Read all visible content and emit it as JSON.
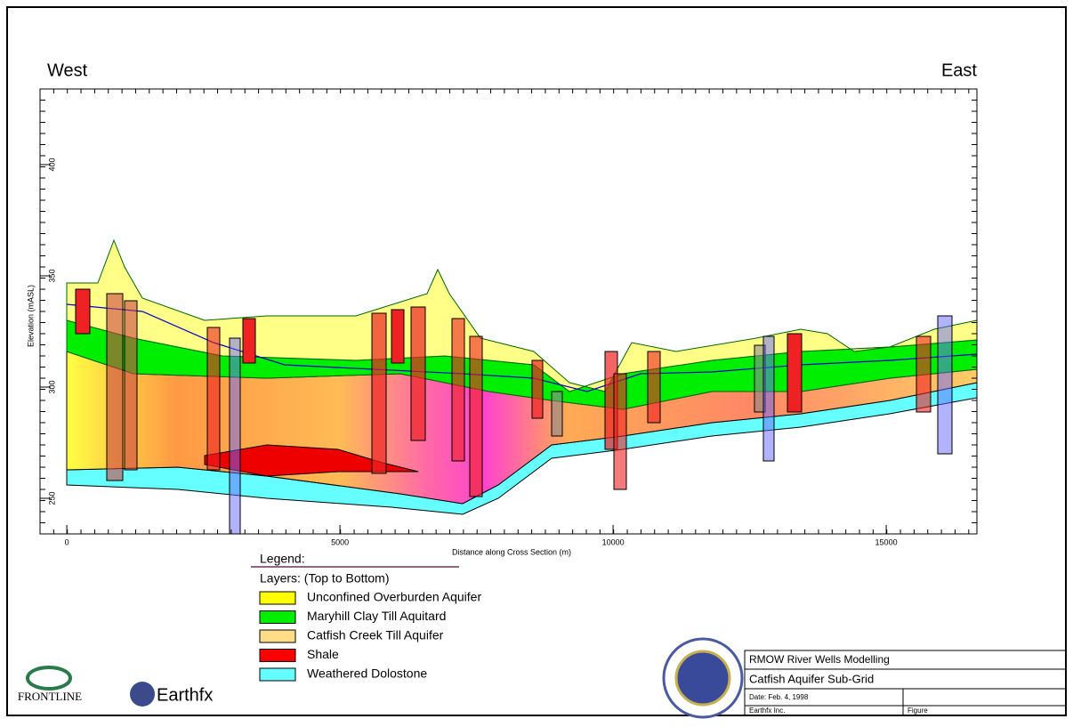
{
  "header": {
    "west": "West",
    "east": "East"
  },
  "axes": {
    "x_label": "Distance along Cross Section (m)",
    "y_label": "Elevation (mASL)",
    "xlim": [
      -490,
      16660
    ],
    "xticks": [
      0,
      5000,
      10000,
      15000
    ],
    "ylim": [
      234,
      434
    ],
    "yticks": [
      250,
      300,
      350,
      400
    ]
  },
  "legend": {
    "title": "Legend:",
    "subtitle": "Layers: (Top to Bottom)",
    "items": [
      {
        "label": "Unconfined Overburden Aquifer",
        "color": "#ffff00"
      },
      {
        "label": "Maryhill Clay Till Aquitard",
        "color": "#00ee00"
      },
      {
        "label": "Catfish Creek Till Aquifer",
        "color": "#ffdd88"
      },
      {
        "label": "Shale",
        "color": "#ff0000"
      },
      {
        "label": "Weathered Dolostone",
        "color": "#66ffff"
      }
    ]
  },
  "logos": {
    "frontline": "FRONTLINE",
    "earthfx": "Earthfx"
  },
  "title_block": {
    "project": "RMOW River Wells Modelling",
    "title": "Catfish Aquifer Sub-Grid",
    "date": "Date: Feb. 4, 1998",
    "company": "Earthfx Inc.",
    "figure": "Figure"
  }
}
